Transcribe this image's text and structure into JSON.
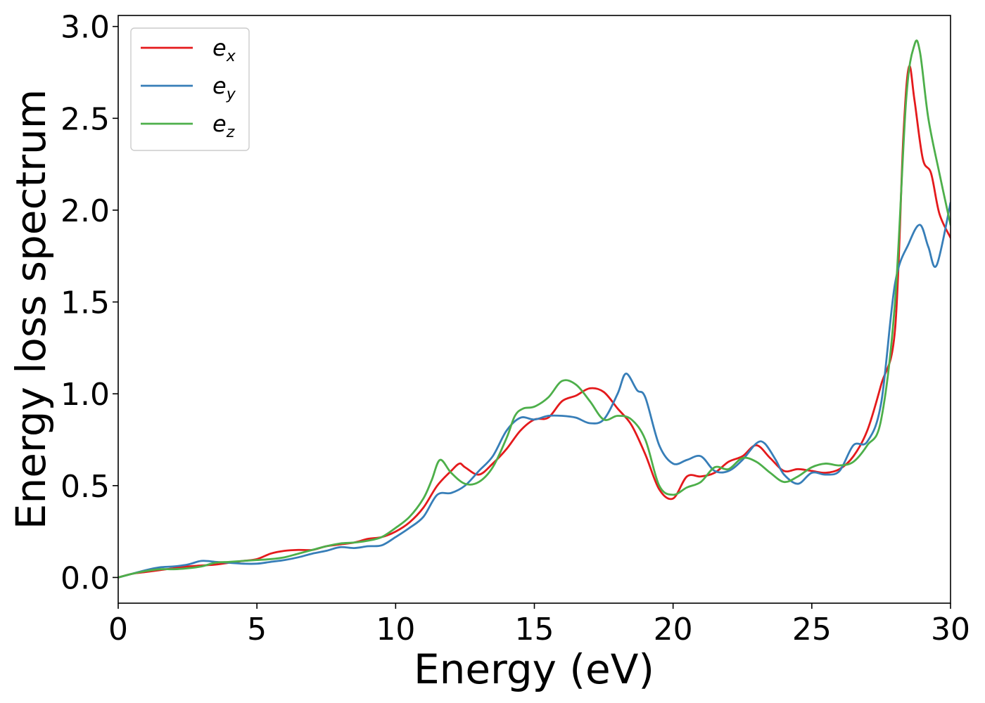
{
  "chart_data": {
    "type": "line",
    "title": "",
    "xlabel": "Energy (eV)",
    "ylabel": "Energy loss spectrum",
    "xlim": [
      0,
      30
    ],
    "ylim": [
      -0.14,
      3.06
    ],
    "xticks": [
      0,
      5,
      10,
      15,
      20,
      25,
      30
    ],
    "xtick_labels": [
      "0",
      "5",
      "10",
      "15",
      "20",
      "25",
      "30"
    ],
    "yticks": [
      0.0,
      0.5,
      1.0,
      1.5,
      2.0,
      2.5,
      3.0
    ],
    "ytick_labels": [
      "0.0",
      "0.5",
      "1.0",
      "1.5",
      "2.0",
      "2.5",
      "3.0"
    ],
    "grid": false,
    "legend_position": "top-left",
    "series": [
      {
        "name": "e_x",
        "label_base": "e",
        "label_sub": "x",
        "color": "#e41a1c",
        "x": [
          0,
          0.5,
          1,
          1.5,
          2,
          2.5,
          3,
          3.5,
          4,
          4.5,
          5,
          5.5,
          6,
          6.5,
          7,
          7.5,
          8,
          8.5,
          9,
          9.5,
          10,
          10.5,
          11,
          11.5,
          12,
          12.3,
          12.5,
          13,
          13.5,
          14,
          14.5,
          15,
          15.5,
          16,
          16.5,
          17,
          17.5,
          18,
          18.5,
          19,
          19.5,
          20,
          20.5,
          21,
          21.5,
          22,
          22.5,
          23,
          23.5,
          24,
          24.5,
          25,
          25.5,
          26,
          26.5,
          27,
          27.5,
          28,
          28.3,
          28.5,
          28.7,
          29,
          29.3,
          29.6,
          30
        ],
        "values": [
          0.0,
          0.02,
          0.03,
          0.04,
          0.05,
          0.06,
          0.065,
          0.07,
          0.08,
          0.09,
          0.1,
          0.13,
          0.145,
          0.15,
          0.15,
          0.17,
          0.18,
          0.19,
          0.21,
          0.22,
          0.25,
          0.3,
          0.38,
          0.5,
          0.58,
          0.62,
          0.6,
          0.56,
          0.62,
          0.7,
          0.8,
          0.86,
          0.87,
          0.96,
          0.99,
          1.03,
          1.01,
          0.92,
          0.83,
          0.67,
          0.48,
          0.43,
          0.55,
          0.55,
          0.57,
          0.63,
          0.66,
          0.72,
          0.65,
          0.58,
          0.59,
          0.58,
          0.57,
          0.59,
          0.66,
          0.8,
          1.05,
          1.35,
          2.4,
          2.78,
          2.6,
          2.28,
          2.2,
          1.98,
          1.85
        ]
      },
      {
        "name": "e_y",
        "label_base": "e",
        "label_sub": "y",
        "color": "#377eb8",
        "x": [
          0,
          0.5,
          1,
          1.5,
          2,
          2.5,
          3,
          3.5,
          4,
          4.5,
          5,
          5.5,
          6,
          6.5,
          7,
          7.5,
          8,
          8.5,
          9,
          9.5,
          10,
          10.5,
          11,
          11.5,
          12,
          12.5,
          13,
          13.5,
          14,
          14.5,
          15,
          15.5,
          16,
          16.5,
          17,
          17.5,
          18,
          18.3,
          18.7,
          19,
          19.5,
          20,
          20.5,
          21,
          21.5,
          22,
          22.5,
          23,
          23.3,
          23.7,
          24,
          24.5,
          25,
          25.5,
          26,
          26.5,
          27,
          27.5,
          28,
          28.5,
          28.9,
          29.2,
          29.5,
          30
        ],
        "values": [
          0.0,
          0.02,
          0.04,
          0.055,
          0.06,
          0.07,
          0.09,
          0.085,
          0.08,
          0.075,
          0.075,
          0.085,
          0.095,
          0.11,
          0.13,
          0.145,
          0.165,
          0.16,
          0.17,
          0.175,
          0.22,
          0.27,
          0.33,
          0.45,
          0.46,
          0.5,
          0.58,
          0.66,
          0.8,
          0.87,
          0.86,
          0.88,
          0.88,
          0.87,
          0.84,
          0.86,
          1.0,
          1.11,
          1.02,
          0.98,
          0.72,
          0.62,
          0.64,
          0.66,
          0.58,
          0.58,
          0.64,
          0.73,
          0.73,
          0.64,
          0.56,
          0.51,
          0.57,
          0.56,
          0.58,
          0.72,
          0.74,
          0.95,
          1.6,
          1.82,
          1.92,
          1.8,
          1.7,
          2.04
        ]
      },
      {
        "name": "e_z",
        "label_base": "e",
        "label_sub": "z",
        "color": "#4daf4a",
        "x": [
          0,
          0.5,
          1,
          1.5,
          2,
          2.5,
          3,
          3.5,
          4,
          4.5,
          5,
          5.5,
          6,
          6.5,
          7,
          7.5,
          8,
          8.5,
          9,
          9.5,
          10,
          10.5,
          11,
          11.3,
          11.6,
          12,
          12.5,
          13,
          13.5,
          14,
          14.3,
          14.6,
          15,
          15.5,
          16,
          16.5,
          17,
          17.5,
          18,
          18.5,
          19,
          19.5,
          20,
          20.5,
          21,
          21.5,
          22,
          22.5,
          23,
          23.5,
          24,
          24.5,
          25,
          25.5,
          26,
          26.5,
          27,
          27.5,
          28,
          28.4,
          28.7,
          28.9,
          29.2,
          29.6,
          30
        ],
        "values": [
          0.0,
          0.02,
          0.035,
          0.045,
          0.045,
          0.05,
          0.06,
          0.08,
          0.085,
          0.09,
          0.095,
          0.1,
          0.11,
          0.13,
          0.15,
          0.17,
          0.185,
          0.19,
          0.2,
          0.22,
          0.27,
          0.33,
          0.43,
          0.53,
          0.64,
          0.57,
          0.51,
          0.52,
          0.6,
          0.76,
          0.88,
          0.92,
          0.93,
          0.98,
          1.07,
          1.05,
          0.96,
          0.86,
          0.88,
          0.86,
          0.75,
          0.5,
          0.45,
          0.49,
          0.52,
          0.6,
          0.59,
          0.65,
          0.63,
          0.57,
          0.52,
          0.55,
          0.6,
          0.62,
          0.61,
          0.63,
          0.72,
          0.86,
          1.5,
          2.6,
          2.9,
          2.86,
          2.5,
          2.2,
          1.92
        ]
      }
    ]
  }
}
